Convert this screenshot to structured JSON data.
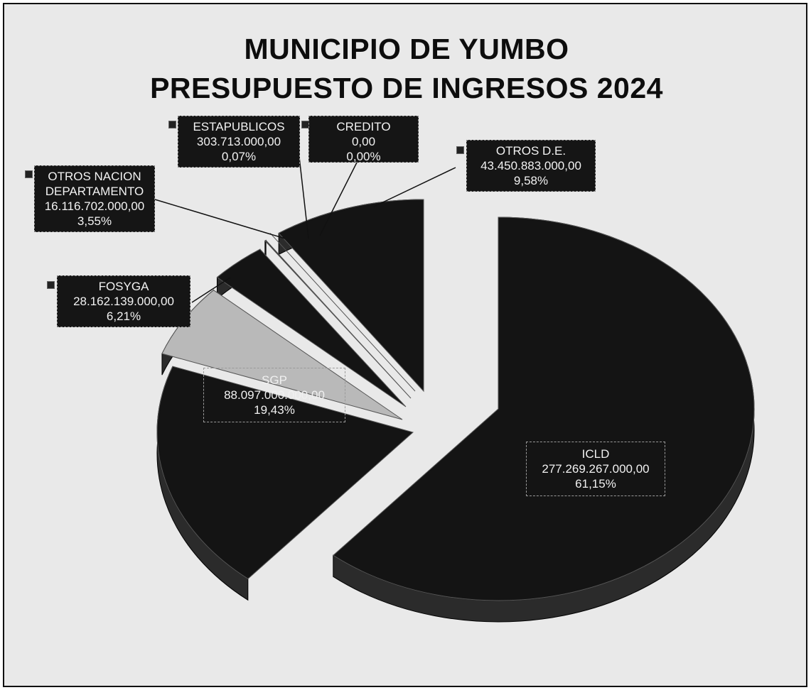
{
  "chart_data": {
    "type": "pie",
    "title": "MUNICIPIO DE YUMBO",
    "subtitle": "PRESUPUESTO DE INGRESOS 2024",
    "slices": [
      {
        "name": "ICLD",
        "value_text": "277.269.267.000,00",
        "value": 277269267000,
        "percent_text": "61,15%",
        "percent": 61.15
      },
      {
        "name": "SGP",
        "value_text": "88.097.000.000,00",
        "value": 88097000000,
        "percent_text": "19,43%",
        "percent": 19.43
      },
      {
        "name": "FOSYGA",
        "value_text": "28.162.139.000,00",
        "value": 28162139000,
        "percent_text": "6,21%",
        "percent": 6.21
      },
      {
        "name": "OTROS NACION DEPARTAMENTO",
        "value_text": "16.116.702.000,00",
        "value": 16116702000,
        "percent_text": "3,55%",
        "percent": 3.55
      },
      {
        "name": "ESTAPUBLICOS",
        "value_text": "303.713.000,00",
        "value": 303713000,
        "percent_text": "0,07%",
        "percent": 0.07
      },
      {
        "name": "CREDITO",
        "value_text": "0,00",
        "value": 0,
        "percent_text": "0,00%",
        "percent": 0
      },
      {
        "name": "OTROS D.E.",
        "value_text": "43.450.883.000,00",
        "value": 43450883000,
        "percent_text": "9,58%",
        "percent": 9.58
      }
    ],
    "colors": {
      "slice_fill": "#141414",
      "fosyga_fill": "#b9b9b9",
      "label_bg": "#151515",
      "label_text": "#f2f2f2",
      "background": "#e9e9e9"
    }
  }
}
